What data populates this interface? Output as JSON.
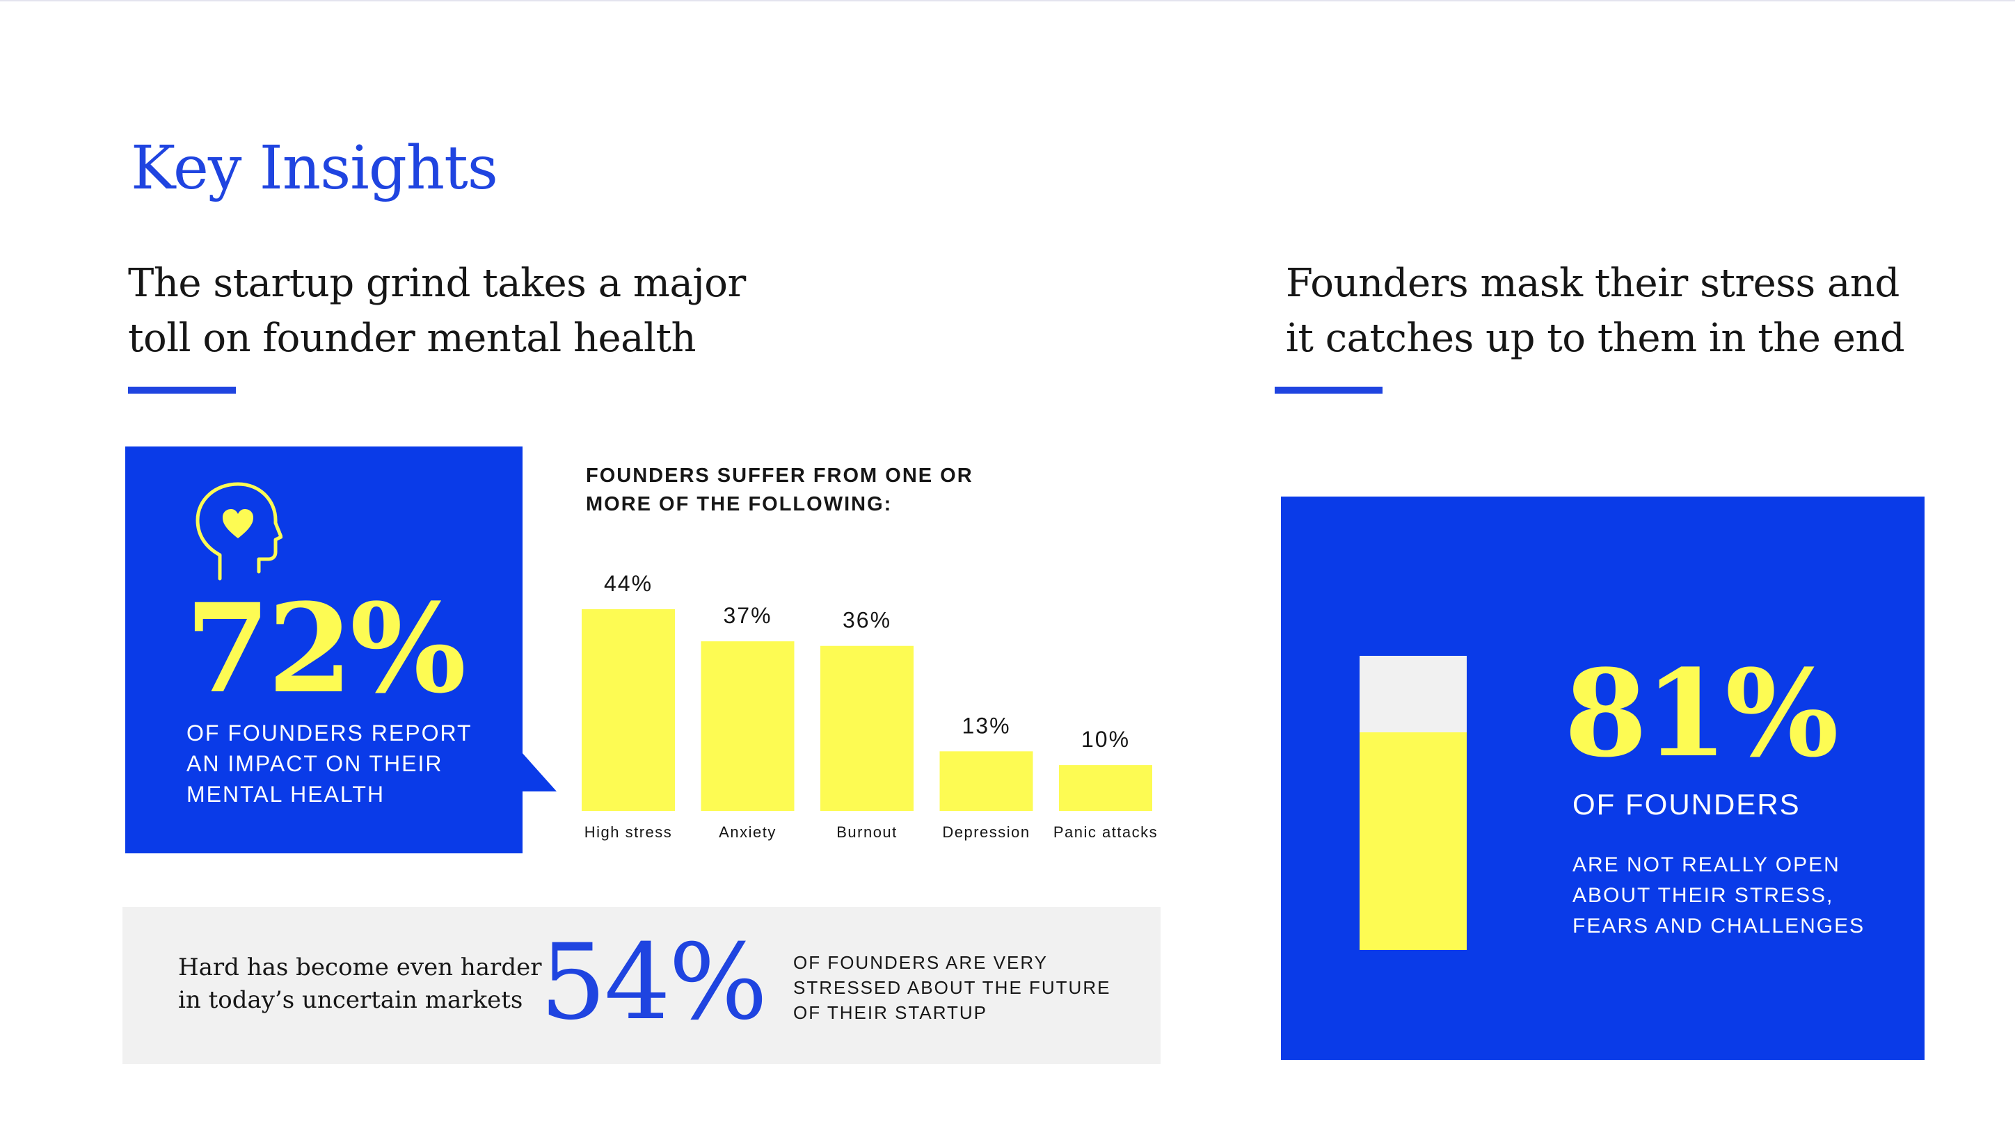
{
  "page": {
    "title": "Key Insights",
    "left_heading": [
      "The startup grind takes a major",
      "toll on founder mental health"
    ],
    "right_heading": [
      "Founders mask their stress and",
      "it catches up to them in the end"
    ]
  },
  "left_card": {
    "icon": "head-heart-icon",
    "stat": "72%",
    "text": [
      "OF FOUNDERS REPORT",
      "AN IMPACT ON THEIR",
      "MENTAL HEALTH"
    ]
  },
  "chart_data": {
    "type": "bar",
    "title": [
      "FOUNDERS SUFFER FROM ONE OR",
      "MORE OF THE FOLLOWING:"
    ],
    "categories": [
      "High stress",
      "Anxiety",
      "Burnout",
      "Depression",
      "Panic attacks"
    ],
    "values": [
      44,
      37,
      36,
      13,
      10
    ],
    "value_labels": [
      "44%",
      "37%",
      "36%",
      "13%",
      "10%"
    ],
    "ylim": [
      0,
      44
    ],
    "grid": false,
    "bar_color": "#fdfb53"
  },
  "stress_strip": {
    "lead": [
      "Hard has become even harder",
      "in today’s uncertain markets"
    ],
    "stat": "54%",
    "text": [
      "OF FOUNDERS ARE VERY",
      "STRESSED ABOUT THE FUTURE",
      "OF THEIR STARTUP"
    ]
  },
  "right_card": {
    "stat": "81%",
    "fill_fraction": 0.74,
    "subtitle": "OF FOUNDERS",
    "text": [
      "ARE NOT REALLY OPEN",
      "ABOUT THEIR STRESS,",
      "FEARS AND CHALLENGES"
    ]
  },
  "colors": {
    "accent_blue": "#1f44e0",
    "card_blue": "#0a3be8",
    "highlight_yellow": "#fdfb53",
    "grey_panel": "#f1f1f1"
  }
}
